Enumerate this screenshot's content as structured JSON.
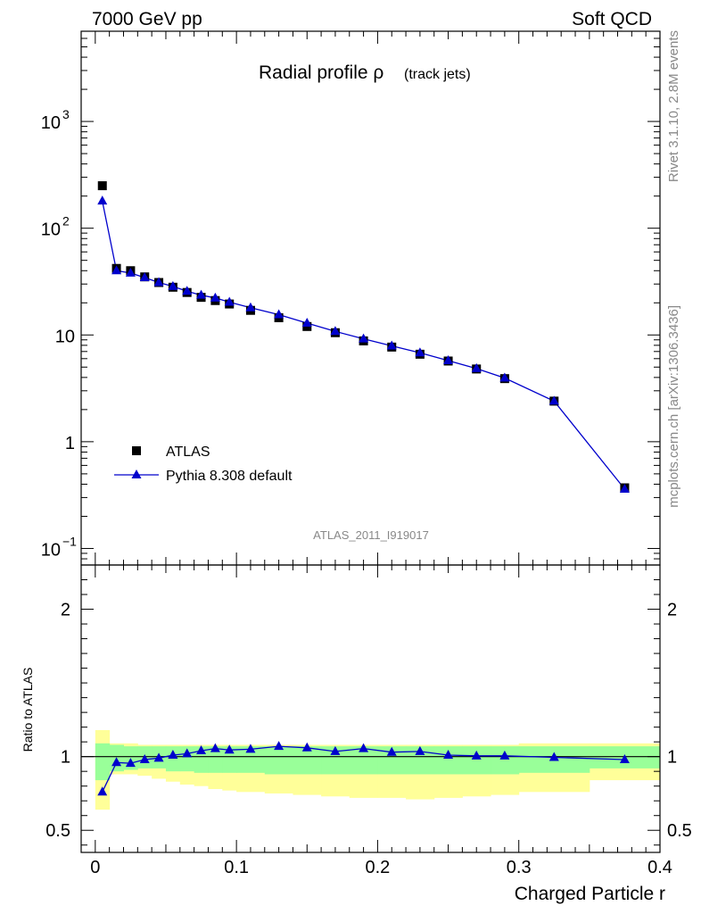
{
  "header": {
    "left": "7000 GeV pp",
    "right": "Soft QCD"
  },
  "side_text": {
    "rivet": "Rivet 3.1.10,  2.8M events",
    "mcplots": "mcplots.cern.ch [arXiv:1306.3436]"
  },
  "colors": {
    "atlas": "#000000",
    "pythia": "#0000cc",
    "band_inner": "#99ff99",
    "band_outer": "#ffff99"
  },
  "chart_data": [
    {
      "type": "scatter",
      "title": "Radial profile ρ",
      "subtitle": "(track jets)",
      "watermark": "ATLAS_2011_I919017",
      "yscale": "log",
      "xlim": [
        -0.01,
        0.4
      ],
      "ylim": [
        0.07,
        7000
      ],
      "y_ticks": [
        {
          "v": 0.1,
          "base": "10",
          "exp": "−1"
        },
        {
          "v": 1,
          "base": "1",
          "exp": ""
        },
        {
          "v": 10,
          "base": "10",
          "exp": ""
        },
        {
          "v": 100,
          "base": "10",
          "exp": "2"
        },
        {
          "v": 1000,
          "base": "10",
          "exp": "3"
        }
      ],
      "legend": {
        "placement": "bottom-left",
        "entries": [
          "ATLAS",
          "Pythia 8.308 default"
        ]
      },
      "series": [
        {
          "name": "ATLAS",
          "x": [
            0.005,
            0.015,
            0.025,
            0.035,
            0.045,
            0.055,
            0.065,
            0.075,
            0.085,
            0.095,
            0.11,
            0.13,
            0.15,
            0.17,
            0.19,
            0.21,
            0.23,
            0.25,
            0.27,
            0.29,
            0.325,
            0.375
          ],
          "y": [
            250,
            42,
            40,
            35,
            31,
            28,
            25,
            22.5,
            21,
            19.5,
            17,
            14.5,
            12,
            10.5,
            8.8,
            7.7,
            6.6,
            5.7,
            4.8,
            3.9,
            2.4,
            0.37
          ]
        },
        {
          "name": "Pythia 8.308 default",
          "x": [
            0.005,
            0.015,
            0.025,
            0.035,
            0.045,
            0.055,
            0.065,
            0.075,
            0.085,
            0.095,
            0.11,
            0.13,
            0.15,
            0.17,
            0.19,
            0.21,
            0.23,
            0.25,
            0.27,
            0.29,
            0.325,
            0.375
          ],
          "y": [
            180,
            40,
            38,
            34.5,
            31,
            28.5,
            25.7,
            23.6,
            22.2,
            20.3,
            18,
            15.5,
            12.9,
            10.8,
            9.2,
            7.9,
            6.8,
            5.75,
            4.85,
            3.95,
            2.4,
            0.36
          ]
        }
      ]
    },
    {
      "type": "line",
      "ylabel": "Ratio to ATLAS",
      "xlabel": "Charged Particle r",
      "xlim": [
        -0.01,
        0.4
      ],
      "ylim": [
        0.35,
        2.3
      ],
      "x_ticks": [
        {
          "v": 0,
          "label": "0"
        },
        {
          "v": 0.1,
          "label": "0.1"
        },
        {
          "v": 0.2,
          "label": "0.2"
        },
        {
          "v": 0.3,
          "label": "0.3"
        },
        {
          "v": 0.4,
          "label": "0.4"
        }
      ],
      "y_ticks": [
        {
          "v": 0.5,
          "label": "0.5"
        },
        {
          "v": 1,
          "label": "1"
        },
        {
          "v": 2,
          "label": "2"
        }
      ],
      "reference": 1,
      "bands": {
        "edges": [
          0,
          0.01,
          0.02,
          0.03,
          0.04,
          0.05,
          0.06,
          0.07,
          0.08,
          0.09,
          0.1,
          0.12,
          0.14,
          0.16,
          0.18,
          0.2,
          0.22,
          0.24,
          0.26,
          0.28,
          0.3,
          0.35,
          0.4
        ],
        "inner_lo": [
          0.84,
          0.9,
          0.91,
          0.92,
          0.92,
          0.9,
          0.9,
          0.89,
          0.89,
          0.89,
          0.89,
          0.88,
          0.88,
          0.88,
          0.88,
          0.88,
          0.88,
          0.88,
          0.88,
          0.88,
          0.89,
          0.92
        ],
        "inner_hi": [
          1.09,
          1.08,
          1.07,
          1.07,
          1.07,
          1.07,
          1.07,
          1.07,
          1.07,
          1.07,
          1.07,
          1.07,
          1.07,
          1.07,
          1.07,
          1.07,
          1.07,
          1.07,
          1.07,
          1.07,
          1.07,
          1.07
        ],
        "outer_lo": [
          0.64,
          0.88,
          0.88,
          0.87,
          0.85,
          0.83,
          0.81,
          0.8,
          0.78,
          0.77,
          0.76,
          0.75,
          0.74,
          0.73,
          0.72,
          0.72,
          0.71,
          0.72,
          0.73,
          0.74,
          0.76,
          0.84
        ],
        "outer_hi": [
          1.18,
          1.09,
          1.09,
          1.08,
          1.08,
          1.08,
          1.08,
          1.08,
          1.08,
          1.08,
          1.08,
          1.08,
          1.08,
          1.08,
          1.08,
          1.08,
          1.08,
          1.08,
          1.08,
          1.08,
          1.09,
          1.09
        ]
      },
      "series": [
        {
          "name": "Pythia 8.308 default",
          "x": [
            0.005,
            0.015,
            0.025,
            0.035,
            0.045,
            0.055,
            0.065,
            0.075,
            0.085,
            0.095,
            0.11,
            0.13,
            0.15,
            0.17,
            0.19,
            0.21,
            0.23,
            0.25,
            0.27,
            0.29,
            0.325,
            0.375
          ],
          "y": [
            0.76,
            0.96,
            0.955,
            0.98,
            0.99,
            1.01,
            1.02,
            1.04,
            1.055,
            1.045,
            1.05,
            1.07,
            1.06,
            1.035,
            1.055,
            1.03,
            1.035,
            1.01,
            1.005,
            1.005,
            0.995,
            0.98
          ]
        }
      ]
    }
  ]
}
